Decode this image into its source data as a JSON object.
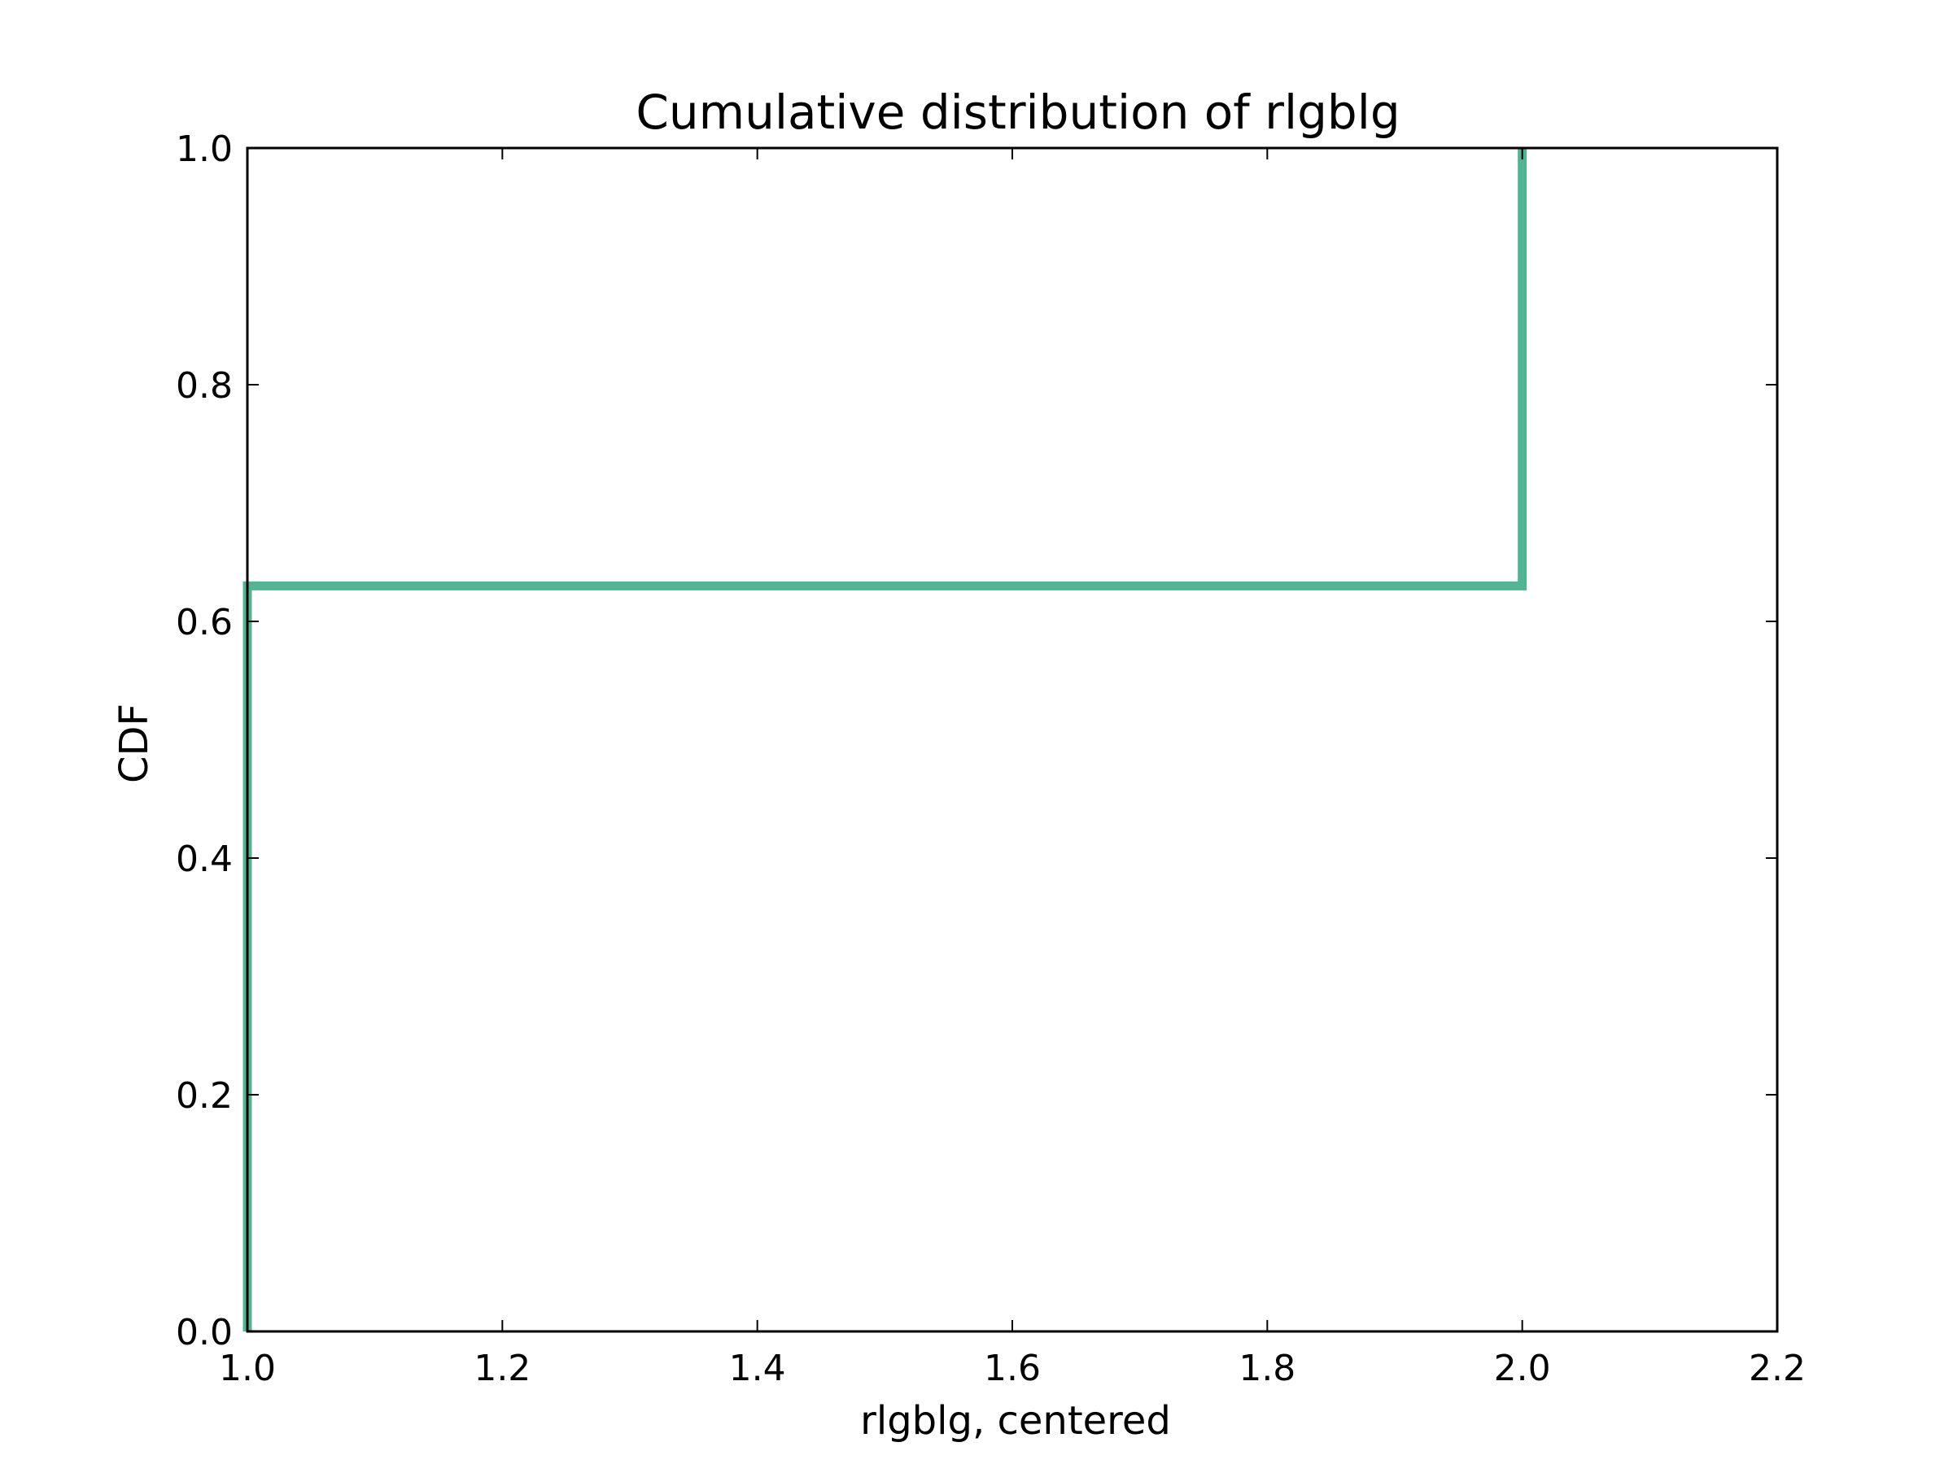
{
  "chart_data": {
    "type": "line",
    "title": "Cumulative distribution of rlgblg",
    "xlabel": "rlgblg, centered",
    "ylabel": "CDF",
    "xlim": [
      1.0,
      2.2
    ],
    "ylim": [
      0.0,
      1.0
    ],
    "grid": false,
    "x_ticks": [
      "1.0",
      "1.2",
      "1.4",
      "1.6",
      "1.8",
      "2.0",
      "2.2"
    ],
    "y_ticks": [
      "0.0",
      "0.2",
      "0.4",
      "0.6",
      "0.8",
      "1.0"
    ],
    "series": [
      {
        "color": "#52b493",
        "step": true,
        "x": [
          1.0,
          1.0,
          2.0,
          2.0
        ],
        "y": [
          0.0,
          0.63,
          0.63,
          1.0
        ]
      }
    ]
  }
}
